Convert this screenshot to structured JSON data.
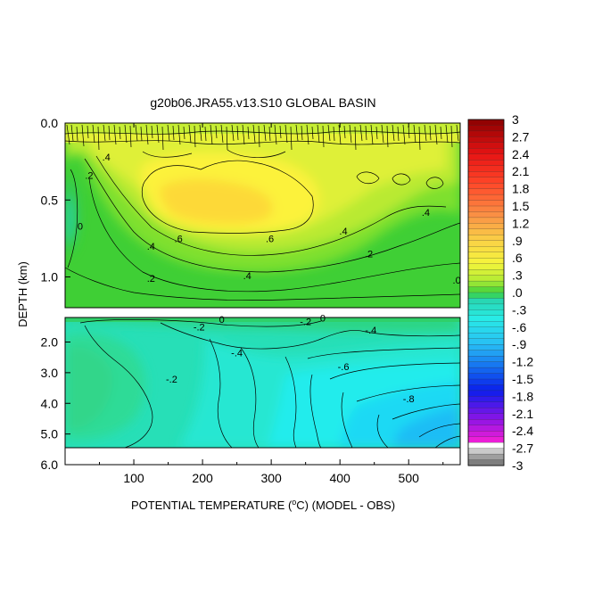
{
  "chart_data": {
    "type": "heatmap",
    "title": "g20b06.JRA55.v13.S10 GLOBAL BASIN",
    "xlabel_prefix": "POTENTIAL TEMPERATURE (",
    "xlabel_unit_sup": "o",
    "xlabel_suffix": "C) (MODEL - OBS)",
    "ylabel": "DEPTH (km)",
    "x_range": [
      0,
      575
    ],
    "x_ticks": [
      100,
      200,
      300,
      400,
      500
    ],
    "upper_panel": {
      "depth_range_km": [
        0.0,
        1.2
      ],
      "y_ticks": [
        "0.0",
        "0.5",
        "1.0"
      ],
      "y_tick_values": [
        0.0,
        0.5,
        1.0
      ]
    },
    "lower_panel": {
      "depth_range_km": [
        1.2,
        6.0
      ],
      "y_ticks": [
        "2.0",
        "3.0",
        "4.0",
        "5.0",
        "6.0"
      ],
      "y_tick_values": [
        2.0,
        3.0,
        4.0,
        5.0,
        6.0
      ]
    },
    "colorbar": {
      "min": -3,
      "max": 3,
      "step": 0.1,
      "labels": [
        "3",
        "2.7",
        "2.4",
        "2.1",
        "1.8",
        "1.5",
        "1.2",
        ".9",
        ".6",
        ".3",
        ".0",
        "-.3",
        "-.6",
        "-.9",
        "-1.2",
        "-1.5",
        "-1.8",
        "-2.1",
        "-2.4",
        "-2.7",
        "-3"
      ],
      "label_values": [
        3,
        2.7,
        2.4,
        2.1,
        1.8,
        1.5,
        1.2,
        0.9,
        0.6,
        0.3,
        0,
        -0.3,
        -0.6,
        -0.9,
        -1.2,
        -1.5,
        -1.8,
        -2.1,
        -2.4,
        -2.7,
        -3
      ]
    },
    "contour_labels": {
      "upper": [
        {
          "text": ".2",
          "x": 35,
          "depth": 0.34
        },
        {
          "text": "0",
          "x": 22,
          "depth": 0.67
        },
        {
          "text": ".4",
          "x": 60,
          "depth": 0.22
        },
        {
          "text": ".6",
          "x": 165,
          "depth": 0.75
        },
        {
          "text": ".4",
          "x": 125,
          "depth": 0.8
        },
        {
          "text": ".2",
          "x": 125,
          "depth": 1.01
        },
        {
          "text": ".4",
          "x": 265,
          "depth": 0.99
        },
        {
          "text": ".6",
          "x": 298,
          "depth": 0.75
        },
        {
          "text": ".4",
          "x": 405,
          "depth": 0.7
        },
        {
          "text": ".2",
          "x": 442,
          "depth": 0.85
        },
        {
          "text": ".4",
          "x": 525,
          "depth": 0.58
        },
        {
          "text": ".0",
          "x": 570,
          "depth": 1.02
        }
      ],
      "lower": [
        {
          "text": "0",
          "x": 228,
          "depth": 1.26
        },
        {
          "text": "-.2",
          "x": 195,
          "depth": 1.5
        },
        {
          "text": "-.2",
          "x": 350,
          "depth": 1.33
        },
        {
          "text": "0",
          "x": 375,
          "depth": 1.22
        },
        {
          "text": "-.4",
          "x": 445,
          "depth": 1.6
        },
        {
          "text": "-.4",
          "x": 250,
          "depth": 2.35
        },
        {
          "text": "-.6",
          "x": 405,
          "depth": 2.8
        },
        {
          "text": "-.2",
          "x": 155,
          "depth": 3.2
        },
        {
          "text": "-.8",
          "x": 500,
          "depth": 3.85
        }
      ]
    }
  }
}
